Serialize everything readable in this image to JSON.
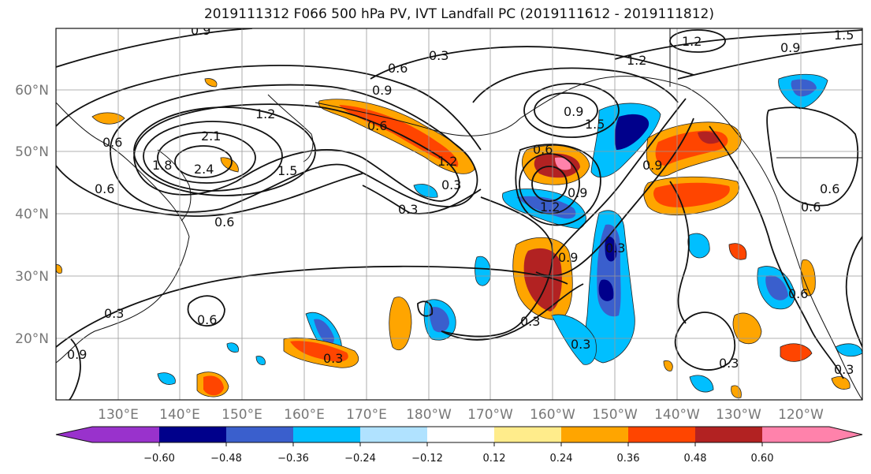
{
  "title": "2019111312 F066 500 hPa PV, IVT Landfall PC (2019111612 - 2019111812)",
  "latitude_labels": [
    "60°N",
    "50°N",
    "40°N",
    "30°N",
    "20°N"
  ],
  "longitude_labels": [
    "130°E",
    "140°E",
    "150°E",
    "160°E",
    "170°E",
    "180°W",
    "170°W",
    "160°W",
    "150°W",
    "140°W",
    "130°W",
    "120°W"
  ],
  "contour_labels": [
    "0.9",
    "0.3",
    "0.6",
    "0.9",
    "1.2",
    "1.5",
    "2.1",
    "2.4",
    "1.8",
    "0.6",
    "0.6",
    "0.6",
    "1.2",
    "1.5",
    "0.9",
    "1.2",
    "0.3",
    "0.6",
    "0.9",
    "1.2",
    "0.9",
    "0.3",
    "0.9",
    "0.3",
    "0.6",
    "0.3",
    "0.6",
    "0.3",
    "0.3",
    "0.9",
    "0.6",
    "1.2",
    "0.9",
    "1.5",
    "0.3",
    "0.6",
    "0.3",
    "0.6",
    "0.3"
  ],
  "colorbar": {
    "tick_labels": [
      "−0.60",
      "−0.48",
      "−0.36",
      "−0.24",
      "−0.12",
      "0.12",
      "0.24",
      "0.36",
      "0.48",
      "0.60"
    ],
    "colors": [
      "#9932cc",
      "#00008b",
      "#3a5fcd",
      "#00bfff",
      "#b0e2ff",
      "#ffffff",
      "#ffec8b",
      "#ffa500",
      "#ff4500",
      "#b22222",
      "#ff82ab"
    ]
  }
}
